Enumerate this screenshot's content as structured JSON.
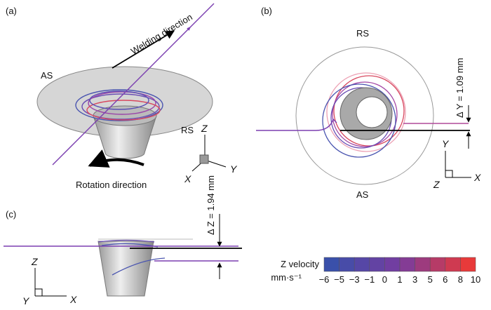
{
  "panel_a": {
    "label": "(a)",
    "welding": "Welding direction",
    "as": "AS",
    "rs": "RS",
    "axis_z": "Z",
    "axis_x": "X",
    "axis_y": "Y",
    "rotation": "Rotation direction"
  },
  "panel_b": {
    "label": "(b)",
    "rs": "RS",
    "as": "AS",
    "delta": "Δ Y = 1.09 mm",
    "axis_y": "Y",
    "axis_x": "X",
    "axis_z": "Z"
  },
  "panel_c": {
    "label": "(c)",
    "delta": "Δ Z = 1.94 mm",
    "axis_z": "Z",
    "axis_y": "Y",
    "axis_x": "X"
  },
  "colorbar": {
    "title": "Z velocity",
    "unit": "mm·s⁻¹",
    "ticks": [
      "−6",
      "−5",
      "−3",
      "−1",
      "0",
      "1",
      "3",
      "5",
      "6",
      "8",
      "10"
    ]
  }
}
